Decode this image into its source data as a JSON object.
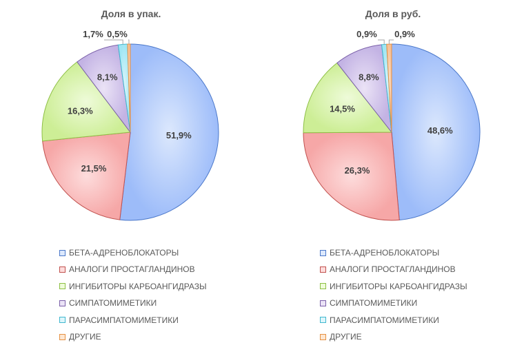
{
  "chart_data": [
    {
      "type": "pie",
      "title": "Доля в упак.",
      "categories": [
        "БЕТА-АДРЕНОБЛОКАТОРЫ",
        "АНАЛОГИ ПРОСТАГЛАНДИНОВ",
        "ИНГИБИТОРЫ КАРБОАНГИДРАЗЫ",
        "СИМПАТОМИМЕТИКИ",
        "ПАРАСИМПАТОМИМЕТИКИ",
        "ДРУГИЕ"
      ],
      "values": [
        51.9,
        21.5,
        16.3,
        8.1,
        1.7,
        0.5
      ],
      "labels": [
        "51,9%",
        "21,5%",
        "16,3%",
        "8,1%",
        "1,7%",
        "0,5%"
      ],
      "legend": "bottom"
    },
    {
      "type": "pie",
      "title": "Доля в руб.",
      "categories": [
        "БЕТА-АДРЕНОБЛОКАТОРЫ",
        "АНАЛОГИ ПРОСТАГЛАНДИНОВ",
        "ИНГИБИТОРЫ КАРБОАНГИДРАЗЫ",
        "СИМПАТОМИМЕТИКИ",
        "ПАРАСИМПАТОМИМЕТИКИ",
        "ДРУГИЕ"
      ],
      "values": [
        48.6,
        26.3,
        14.5,
        8.8,
        0.9,
        0.9
      ],
      "labels": [
        "48,6%",
        "26,3%",
        "14,5%",
        "8,8%",
        "0,9%",
        "0,9%"
      ],
      "legend": "bottom"
    }
  ],
  "colors": {
    "fill_light": [
      "#dce8fd",
      "#fddcdc",
      "#eefbd9",
      "#ebe3f6",
      "#def6fb",
      "#fde7d2"
    ],
    "fill_dark": [
      "#9dbcf9",
      "#f6a7a7",
      "#cdee96",
      "#c3b3e4",
      "#9fe6f3",
      "#f7c095"
    ],
    "stroke": [
      "#4a77c9",
      "#c0504d",
      "#8dbf44",
      "#7a5fa8",
      "#3fb7cf",
      "#e69142"
    ]
  }
}
